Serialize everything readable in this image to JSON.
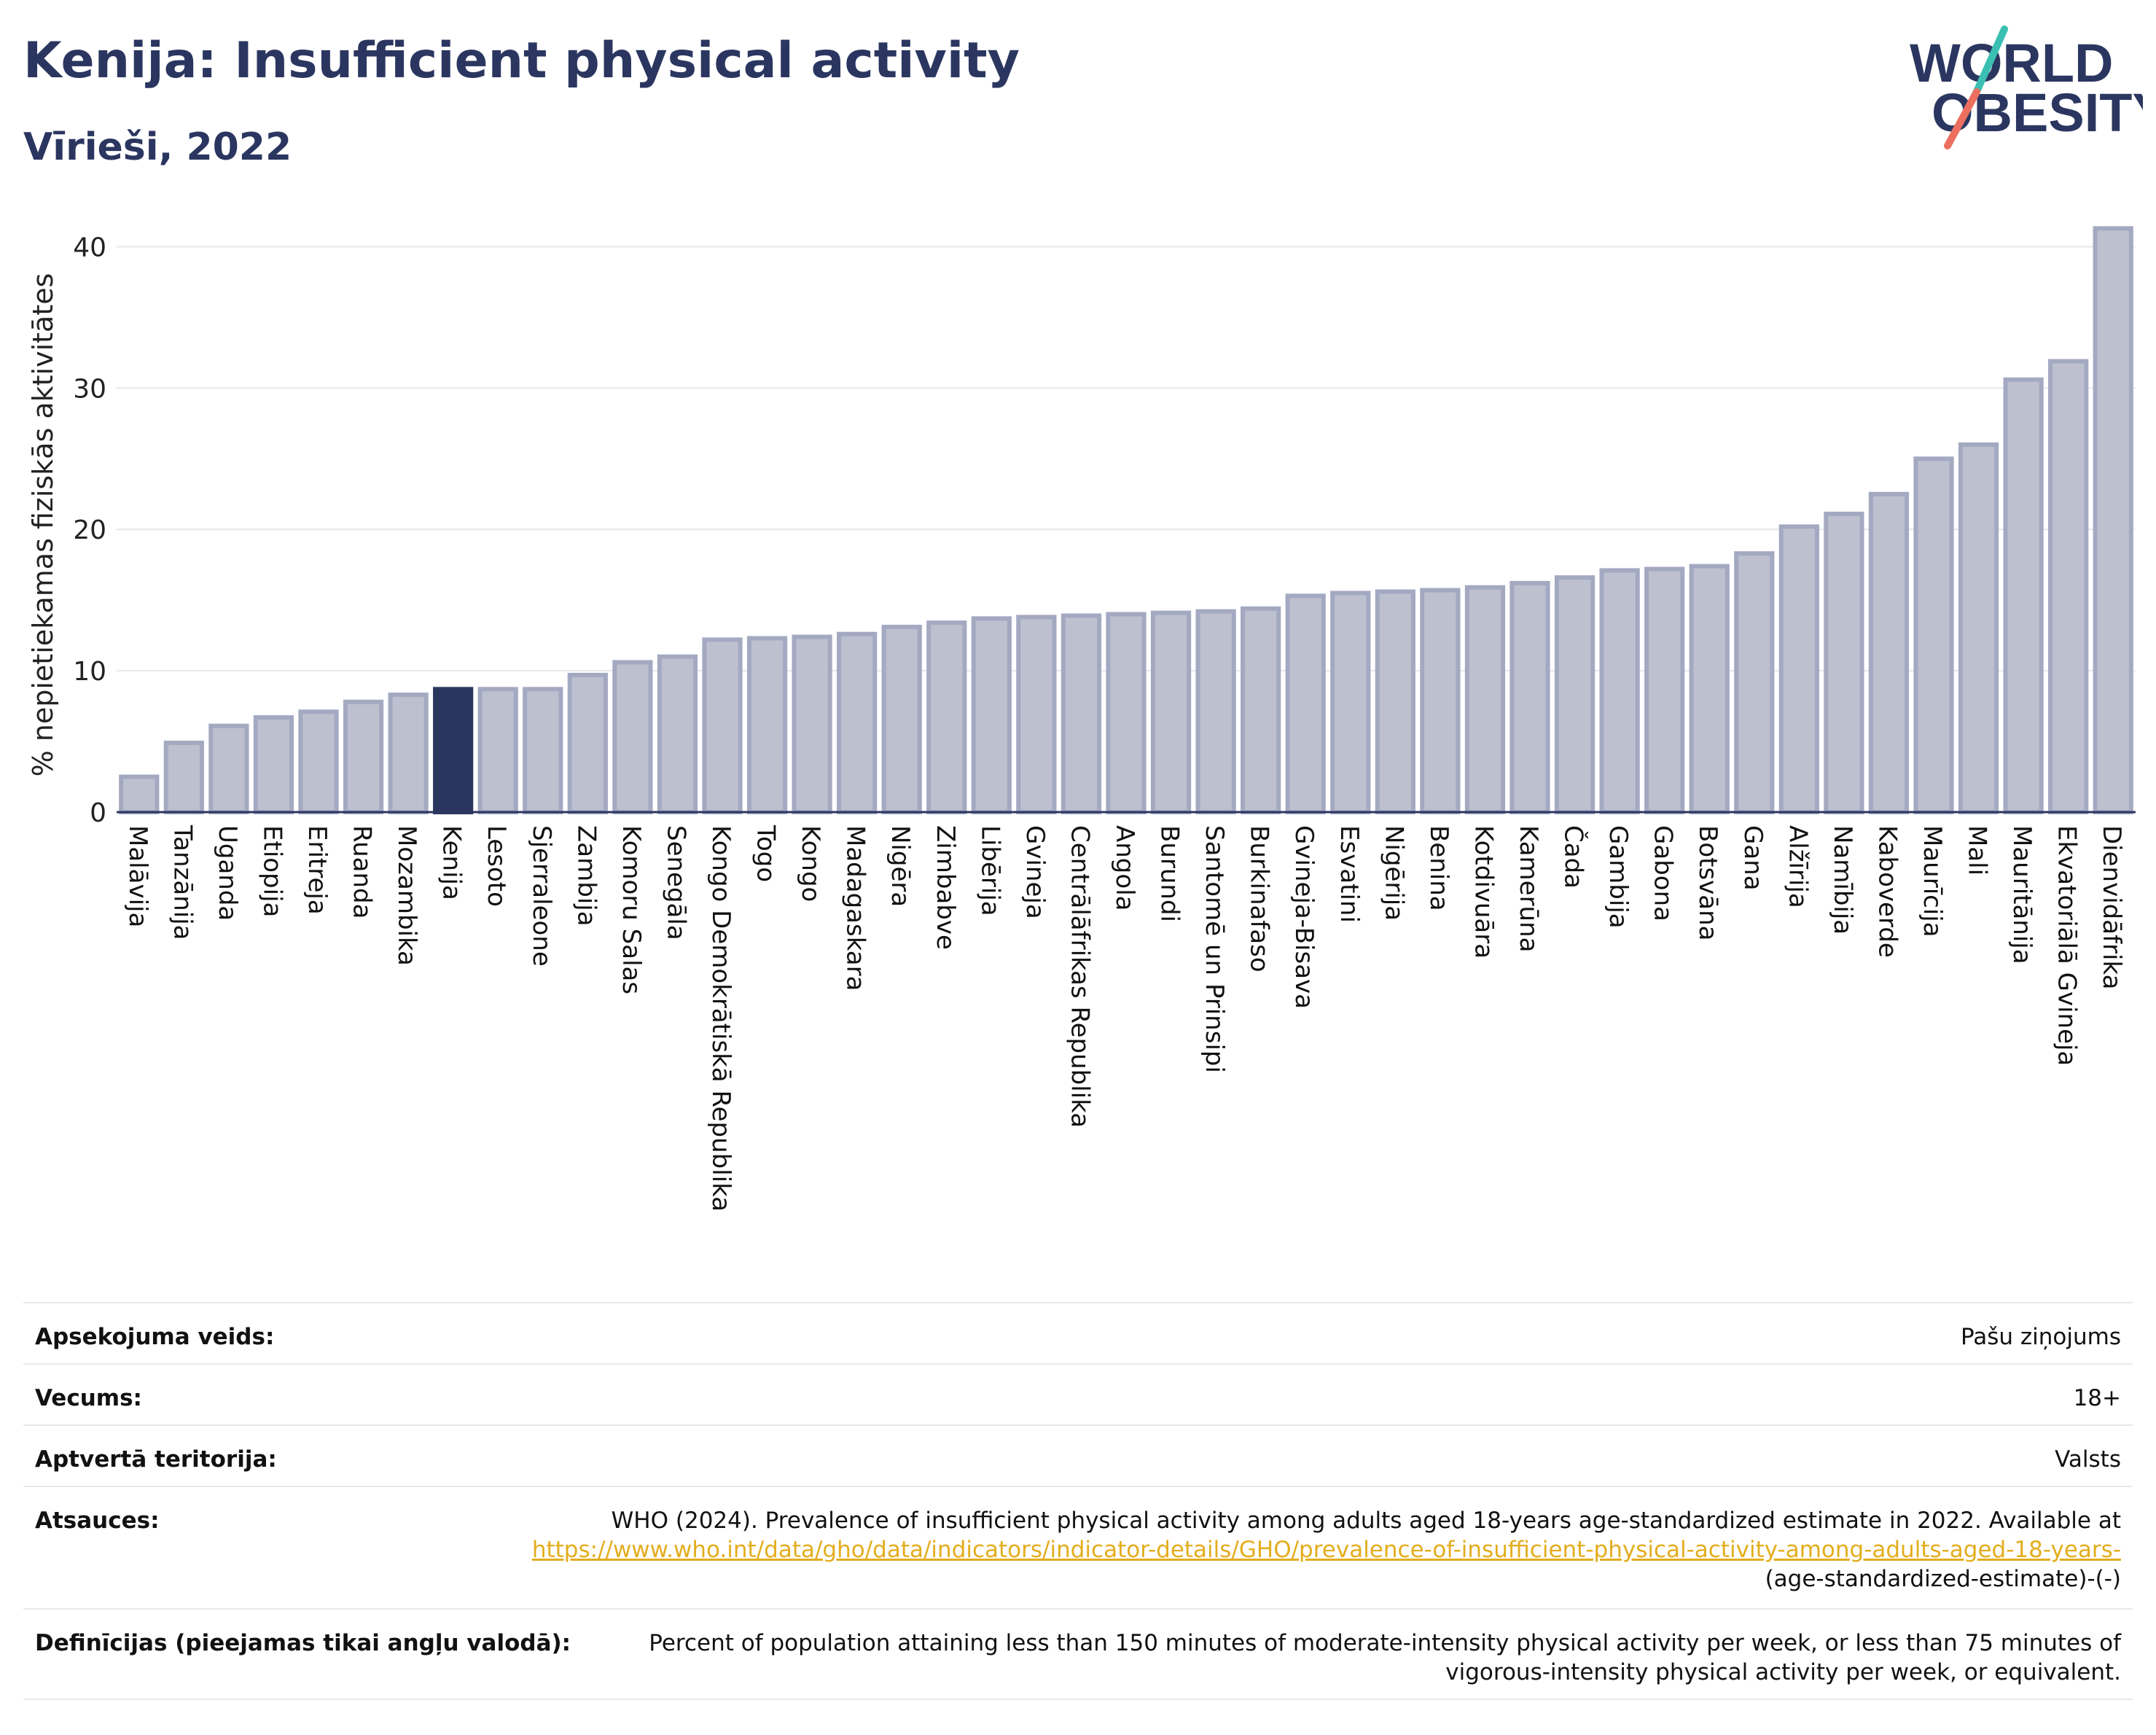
{
  "header": {
    "title": "Kenija: Insufficient physical activity",
    "subtitle": "Vīrieši, 2022"
  },
  "logo": {
    "line1": "WORLD",
    "line2": "OBESITY",
    "colors": {
      "text": "#2b3660",
      "slash_teal": "#3bbfb2",
      "slash_coral": "#ec6f5f"
    }
  },
  "chart_data": {
    "type": "bar",
    "ylabel": "% nepietiekamas fiziskās aktivitātes",
    "ylim": [
      0,
      42.5
    ],
    "yticks": [
      0,
      10,
      20,
      30,
      40
    ],
    "grid": true,
    "highlight": "Kenija",
    "colors": {
      "bar": "#bcc0cf",
      "bar_stroke": "#a4a9c2",
      "highlight": "#2b3660",
      "grid": "#e6e6ec"
    },
    "categories": [
      "Malāvija",
      "Tanzānija",
      "Uganda",
      "Etiopija",
      "Eritreja",
      "Ruanda",
      "Mozambika",
      "Kenija",
      "Lesoto",
      "Sjerraleone",
      "Zambija",
      "Komoru Salas",
      "Senegāla",
      "Kongo Demokrātiskā Republika",
      "Togo",
      "Kongo",
      "Madagaskara",
      "Nigēra",
      "Zimbabve",
      "Libērija",
      "Gvineja",
      "Centrālāfrikas Republika",
      "Angola",
      "Burundi",
      "Santomē un Prinsipi",
      "Burkinafaso",
      "Gvineja-Bisava",
      "Esvatini",
      "Nigērija",
      "Benina",
      "Kotdivuāra",
      "Kamerūna",
      "Čada",
      "Gambija",
      "Gabona",
      "Botsvāna",
      "Gana",
      "Alžīrija",
      "Namībija",
      "Kaboverde",
      "Maurīcija",
      "Mali",
      "Mauritānija",
      "Ekvatoriālā Gvineja",
      "Dienvidāfrika"
    ],
    "values": [
      2.5,
      4.9,
      6.1,
      6.7,
      7.1,
      7.8,
      8.3,
      8.7,
      8.7,
      8.7,
      9.7,
      10.6,
      11.0,
      12.2,
      12.3,
      12.4,
      12.6,
      13.1,
      13.4,
      13.7,
      13.8,
      13.9,
      14.0,
      14.1,
      14.2,
      14.4,
      15.3,
      15.5,
      15.6,
      15.7,
      15.9,
      16.2,
      16.6,
      17.1,
      17.2,
      17.4,
      18.3,
      20.2,
      21.1,
      22.5,
      25.0,
      26.0,
      30.6,
      31.9,
      41.3
    ]
  },
  "meta": [
    {
      "label": "Apsekojuma veids:",
      "value": "Pašu ziņojums"
    },
    {
      "label": "Vecums:",
      "value": "18+"
    },
    {
      "label": "Aptvertā teritorija:",
      "value": "Valsts"
    },
    {
      "label": "Atsauces:",
      "value": "WHO (2024). Prevalence of insufficient physical activity among adults aged 18-years age-standardized estimate in 2022. Available at",
      "link": "https://www.who.int/data/gho/data/indicators/indicator-details/GHO/prevalence-of-insufficient-physical-activity-among-adults-aged-18-years-",
      "suffix": "(age-standardized-estimate)-(-)"
    },
    {
      "label": "Definīcijas (pieejamas tikai angļu valodā):",
      "value": "Percent of population attaining less than 150 minutes of moderate-intensity physical activity per week, or less than 75 minutes of vigorous-intensity physical activity per week, or equivalent."
    }
  ]
}
